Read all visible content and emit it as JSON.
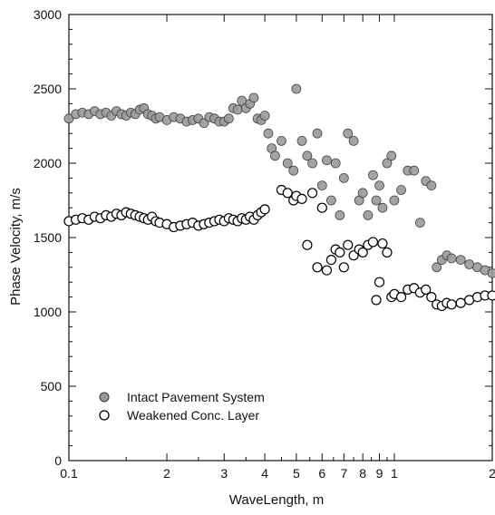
{
  "chart_data": {
    "type": "scatter",
    "xlabel": "WaveLength, m",
    "ylabel": "Phase Velocity, m/s",
    "xscale": "log",
    "xlim": [
      0.1,
      2
    ],
    "ylim": [
      0,
      3000
    ],
    "x_tick_labels": [
      {
        "value": 0.1,
        "label": "0.1"
      },
      {
        "value": 0.2,
        "label": "2"
      },
      {
        "value": 0.3,
        "label": "3"
      },
      {
        "value": 0.4,
        "label": "4"
      },
      {
        "value": 0.5,
        "label": "5"
      },
      {
        "value": 0.6,
        "label": "6"
      },
      {
        "value": 0.7,
        "label": "7"
      },
      {
        "value": 0.8,
        "label": "8"
      },
      {
        "value": 0.9,
        "label": "9"
      },
      {
        "value": 1,
        "label": "1"
      },
      {
        "value": 2,
        "label": "2"
      }
    ],
    "y_tick_labels": [
      {
        "value": 0,
        "label": "0"
      },
      {
        "value": 500,
        "label": "500"
      },
      {
        "value": 1000,
        "label": "1000"
      },
      {
        "value": 1500,
        "label": "1500"
      },
      {
        "value": 2000,
        "label": "2000"
      },
      {
        "value": 2500,
        "label": "2500"
      },
      {
        "value": 3000,
        "label": "3000"
      }
    ],
    "legend_position": "bottom-left",
    "grid": false,
    "series": [
      {
        "name": "Intact Pavement System",
        "marker": "filled-circle",
        "color": "#9a9a9a",
        "x": [
          0.1,
          0.105,
          0.11,
          0.115,
          0.12,
          0.125,
          0.13,
          0.135,
          0.14,
          0.145,
          0.15,
          0.155,
          0.16,
          0.165,
          0.17,
          0.175,
          0.18,
          0.185,
          0.19,
          0.2,
          0.21,
          0.22,
          0.23,
          0.24,
          0.25,
          0.26,
          0.27,
          0.28,
          0.29,
          0.3,
          0.31,
          0.32,
          0.33,
          0.34,
          0.35,
          0.36,
          0.37,
          0.38,
          0.39,
          0.4,
          0.41,
          0.42,
          0.43,
          0.45,
          0.47,
          0.49,
          0.5,
          0.52,
          0.54,
          0.56,
          0.58,
          0.6,
          0.62,
          0.64,
          0.66,
          0.68,
          0.7,
          0.72,
          0.75,
          0.78,
          0.8,
          0.83,
          0.86,
          0.88,
          0.9,
          0.92,
          0.95,
          0.98,
          1.0,
          1.05,
          1.1,
          1.15,
          1.2,
          1.25,
          1.3,
          1.35,
          1.4,
          1.45,
          1.5,
          1.6,
          1.7,
          1.8,
          1.9,
          2.0
        ],
        "y": [
          2300,
          2330,
          2340,
          2330,
          2350,
          2330,
          2340,
          2320,
          2350,
          2330,
          2320,
          2340,
          2330,
          2360,
          2370,
          2330,
          2320,
          2300,
          2310,
          2290,
          2310,
          2300,
          2280,
          2290,
          2300,
          2270,
          2310,
          2300,
          2280,
          2280,
          2300,
          2370,
          2360,
          2420,
          2370,
          2400,
          2440,
          2300,
          2290,
          2320,
          2200,
          2100,
          2050,
          2150,
          2000,
          1950,
          2500,
          2150,
          2050,
          2000,
          2200,
          1850,
          2020,
          1750,
          2000,
          1650,
          1900,
          2200,
          2150,
          1750,
          1800,
          1650,
          1920,
          1750,
          1850,
          1700,
          2000,
          2050,
          1750,
          1820,
          1950,
          1950,
          1600,
          1880,
          1850,
          1300,
          1350,
          1380,
          1360,
          1350,
          1320,
          1300,
          1280,
          1260
        ]
      },
      {
        "name": "Weakened Conc. Layer",
        "marker": "open-circle",
        "color": "#000000",
        "x": [
          0.1,
          0.105,
          0.11,
          0.115,
          0.12,
          0.125,
          0.13,
          0.135,
          0.14,
          0.145,
          0.15,
          0.155,
          0.16,
          0.165,
          0.17,
          0.175,
          0.18,
          0.185,
          0.19,
          0.2,
          0.21,
          0.22,
          0.23,
          0.24,
          0.25,
          0.26,
          0.27,
          0.28,
          0.29,
          0.3,
          0.31,
          0.32,
          0.33,
          0.34,
          0.35,
          0.36,
          0.37,
          0.38,
          0.39,
          0.4,
          0.45,
          0.47,
          0.49,
          0.5,
          0.52,
          0.54,
          0.56,
          0.58,
          0.6,
          0.62,
          0.64,
          0.66,
          0.68,
          0.7,
          0.72,
          0.75,
          0.78,
          0.8,
          0.83,
          0.86,
          0.88,
          0.9,
          0.92,
          0.95,
          0.98,
          1.0,
          1.05,
          1.1,
          1.15,
          1.2,
          1.25,
          1.3,
          1.35,
          1.4,
          1.45,
          1.5,
          1.6,
          1.7,
          1.8,
          1.9,
          2.0
        ],
        "y": [
          1610,
          1620,
          1630,
          1620,
          1640,
          1630,
          1650,
          1640,
          1660,
          1650,
          1670,
          1660,
          1650,
          1640,
          1630,
          1620,
          1640,
          1610,
          1600,
          1590,
          1570,
          1580,
          1590,
          1600,
          1580,
          1590,
          1600,
          1610,
          1620,
          1610,
          1630,
          1620,
          1610,
          1630,
          1620,
          1640,
          1620,
          1650,
          1670,
          1690,
          1820,
          1800,
          1750,
          1780,
          1760,
          1450,
          1800,
          1300,
          1700,
          1280,
          1350,
          1420,
          1400,
          1300,
          1450,
          1380,
          1420,
          1400,
          1450,
          1470,
          1080,
          1200,
          1460,
          1400,
          1100,
          1120,
          1100,
          1150,
          1160,
          1130,
          1150,
          1100,
          1050,
          1040,
          1060,
          1050,
          1060,
          1080,
          1100,
          1110,
          1110
        ]
      }
    ]
  }
}
